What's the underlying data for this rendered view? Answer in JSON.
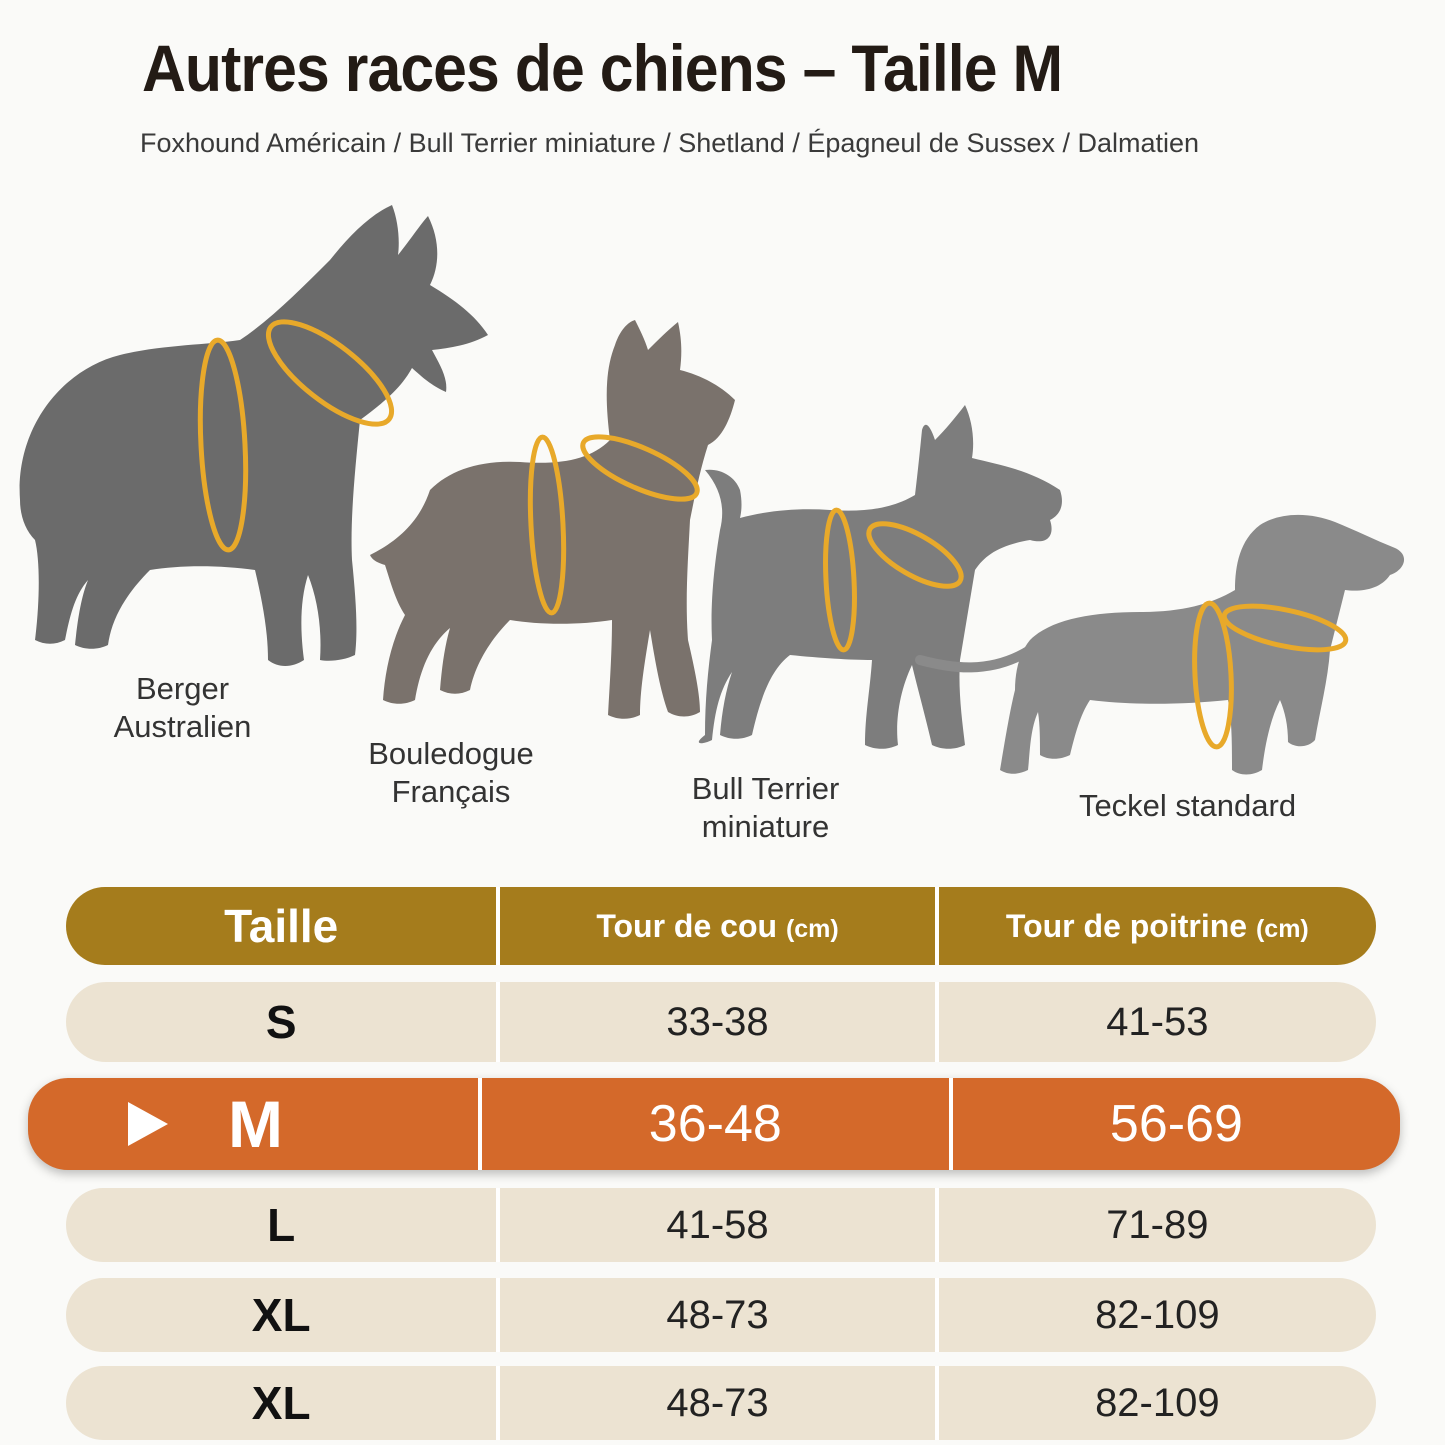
{
  "title": "Autres races de chiens – Taille M",
  "subtitle": "Foxhound Américain / Bull Terrier miniature / Shetland / Épagneul de Sussex / Dalmatien",
  "dogs": [
    {
      "name": "Berger Australien",
      "line1": "Berger",
      "line2": "Australien",
      "color": "#6b6b6b"
    },
    {
      "name": "Bouledogue Français",
      "line1": "Bouledogue",
      "line2": "Français",
      "color": "#7a726c"
    },
    {
      "name": "Bull Terrier miniature",
      "line1": "Bull Terrier",
      "line2": "miniature",
      "color": "#7d7d7d"
    },
    {
      "name": "Teckel standard",
      "line1": "Teckel standard",
      "line2": "",
      "color": "#8a8a8a"
    }
  ],
  "harness_color": "#e8a92a",
  "table": {
    "headers": {
      "taille": "Taille",
      "cou": "Tour de cou",
      "cou_unit": "(cm)",
      "poitrine": "Tour de poitrine",
      "poitrine_unit": "(cm)"
    },
    "rows": [
      {
        "size": "S",
        "neck": "33-38",
        "chest": "41-53"
      },
      {
        "size": "M",
        "neck": "36-48",
        "chest": "56-69",
        "highlighted": true
      },
      {
        "size": "L",
        "neck": "41-58",
        "chest": "71-89"
      },
      {
        "size": "XL",
        "neck": "48-73",
        "chest": "82-109"
      },
      {
        "size": "XL",
        "neck": "48-73",
        "chest": "82-109"
      }
    ],
    "colors": {
      "header": "#a57c1c",
      "row": "#ece3d2",
      "highlight": "#d4692a"
    }
  }
}
